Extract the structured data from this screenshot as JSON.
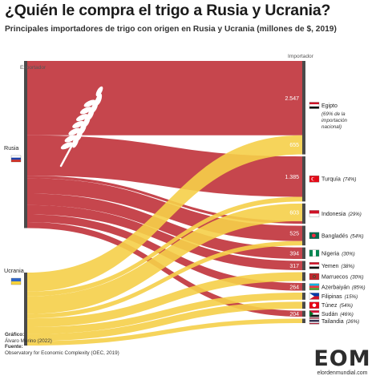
{
  "title": "¿Quién le compra el trigo a Rusia y Ucrania?",
  "subtitle": "Principales importadores de trigo con origen en Rusia y Ucrania (millones de $, 2019)",
  "colors": {
    "rusia": "#c0323a",
    "ucrania": "#f5cf49",
    "node": "#4a4a4a",
    "value_text": "#ffffff"
  },
  "chart_data": {
    "type": "sankey",
    "column_labels": {
      "left": "Exportador",
      "right": "Importador"
    },
    "sources": [
      {
        "name": "Rusia",
        "flag": "flag-russia"
      },
      {
        "name": "Ucrania",
        "flag": "flag-ukraine"
      }
    ],
    "targets": [
      {
        "name": "Egipto",
        "note": "(69% de la importación nacional)",
        "flag": "flag-egypt"
      },
      {
        "name": "Turquía",
        "note": "(74%)",
        "flag": "flag-turkey"
      },
      {
        "name": "Indonesia",
        "note": "(29%)",
        "flag": "flag-indonesia"
      },
      {
        "name": "Bangladés",
        "note": "(54%)",
        "flag": "flag-bangladesh"
      },
      {
        "name": "Nigeria",
        "note": "(30%)",
        "flag": "flag-nigeria"
      },
      {
        "name": "Yemen",
        "note": "(38%)",
        "flag": "flag-yemen"
      },
      {
        "name": "Marruecos",
        "note": "(30%)",
        "flag": "flag-morocco"
      },
      {
        "name": "Azerbaiyán",
        "note": "(85%)",
        "flag": "flag-azerbaijan"
      },
      {
        "name": "Filipinas",
        "note": "(15%)",
        "flag": "flag-philippines"
      },
      {
        "name": "Túnez",
        "note": "(54%)",
        "flag": "flag-tunisia"
      },
      {
        "name": "Sudán",
        "note": "(46%)",
        "flag": "flag-sudan"
      },
      {
        "name": "Tailandia",
        "note": "(26%)",
        "flag": "flag-thailand"
      }
    ],
    "flows": [
      {
        "source": "Rusia",
        "target": "Egipto",
        "value": 2547
      },
      {
        "source": "Ucrania",
        "target": "Egipto",
        "value": 655
      },
      {
        "source": "Rusia",
        "target": "Turquía",
        "value": 1385
      },
      {
        "source": "Ucrania",
        "target": "Turquía",
        "value": 160
      },
      {
        "source": "Ucrania",
        "target": "Indonesia",
        "value": 603
      },
      {
        "source": "Rusia",
        "target": "Indonesia",
        "value": 90
      },
      {
        "source": "Rusia",
        "target": "Bangladés",
        "value": 525
      },
      {
        "source": "Ucrania",
        "target": "Bangladés",
        "value": 150
      },
      {
        "source": "Rusia",
        "target": "Nigeria",
        "value": 394
      },
      {
        "source": "Rusia",
        "target": "Yemen",
        "value": 317
      },
      {
        "source": "Ucrania",
        "target": "Marruecos",
        "value": 300
      },
      {
        "source": "Rusia",
        "target": "Azerbaiyán",
        "value": 264
      },
      {
        "source": "Ucrania",
        "target": "Filipinas",
        "value": 242
      },
      {
        "source": "Ucrania",
        "target": "Túnez",
        "value": 240
      },
      {
        "source": "Rusia",
        "target": "Sudán",
        "value": 204
      },
      {
        "source": "Ucrania",
        "target": "Tailandia",
        "value": 150
      }
    ],
    "value_labels": [
      {
        "target": "Egipto",
        "source": "Rusia",
        "text": "2.547"
      },
      {
        "target": "Egipto",
        "source": "Ucrania",
        "text": "655"
      },
      {
        "target": "Turquía",
        "source": "Rusia",
        "text": "1.385"
      },
      {
        "target": "Indonesia",
        "source": "Ucrania",
        "text": "603"
      },
      {
        "target": "Bangladés",
        "source": "Rusia",
        "text": "525"
      },
      {
        "target": "Nigeria",
        "source": "Rusia",
        "text": "394"
      },
      {
        "target": "Yemen",
        "source": "Rusia",
        "text": "317"
      },
      {
        "target": "Azerbaiyán",
        "source": "Rusia",
        "text": "264"
      },
      {
        "target": "Sudán",
        "source": "Rusia",
        "text": "204"
      }
    ]
  },
  "footer": {
    "graphic_label": "Gráfico:",
    "graphic_author": "Álvaro Merino (2022)",
    "source_label": "Fuente:",
    "source_text": "Observatory for Economic Complexity (OEC, 2019)"
  },
  "logo": {
    "mark": "EOM",
    "site": "elordenmundial.com"
  }
}
